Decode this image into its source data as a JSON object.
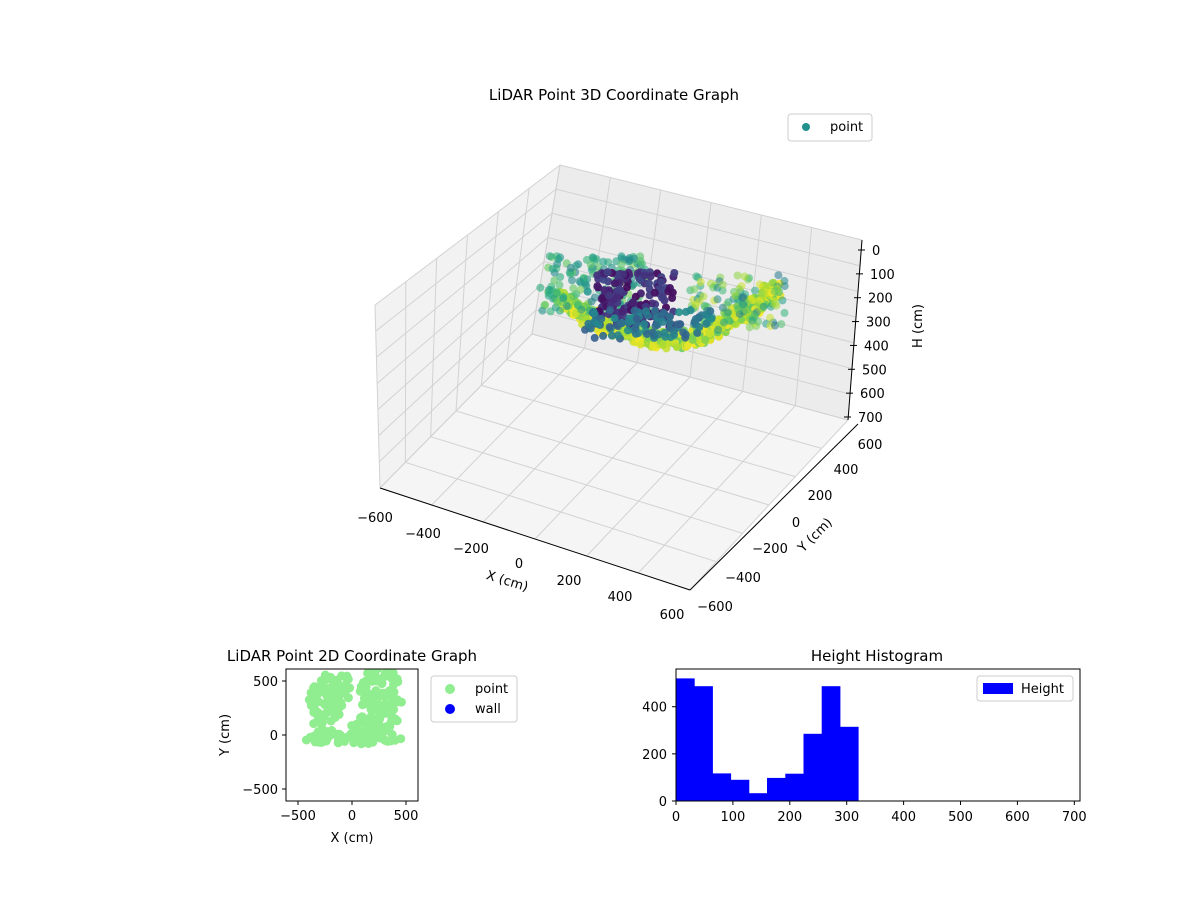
{
  "chart_data": [
    {
      "type": "scatter3d",
      "title": "LiDAR Point 3D Coordinate Graph",
      "xlabel": "X (cm)",
      "ylabel": "Y (cm)",
      "zlabel": "H (cm)",
      "xlim": [
        -600,
        600
      ],
      "ylim": [
        -600,
        600
      ],
      "zlim": [
        0,
        700
      ],
      "z_inverted": true,
      "xticks": [
        "−600",
        "−400",
        "−200",
        "0",
        "200",
        "400",
        "600"
      ],
      "yticks": [
        "−600",
        "−400",
        "−200",
        "0",
        "200",
        "400",
        "600"
      ],
      "zticks": [
        "0",
        "100",
        "200",
        "300",
        "400",
        "500",
        "600",
        "700"
      ],
      "colormap": "viridis",
      "legend": {
        "entries": [
          "point"
        ],
        "placement": "top-right",
        "color": "#21918c"
      },
      "grid": true
    },
    {
      "type": "scatter",
      "title": "LiDAR Point 2D Coordinate Graph",
      "xlabel": "X (cm)",
      "ylabel": "Y (cm)",
      "xlim": [
        -600,
        600
      ],
      "ylim": [
        -600,
        600
      ],
      "xticks": [
        "−500",
        "0",
        "500"
      ],
      "yticks": [
        "−500",
        "0",
        "500"
      ],
      "legend": {
        "entries": [
          {
            "label": "point",
            "color": "#90ee90"
          },
          {
            "label": "wall",
            "color": "#0000ff"
          }
        ],
        "placement": "outside-right"
      },
      "series": [
        {
          "name": "point",
          "color": "#90ee90"
        },
        {
          "name": "wall",
          "color": "#0000ff"
        }
      ]
    },
    {
      "type": "bar",
      "title": "Height Histogram",
      "xlim": [
        0,
        710
      ],
      "ylim": [
        0,
        560
      ],
      "xticks": [
        "0",
        "100",
        "200",
        "300",
        "400",
        "500",
        "600",
        "700"
      ],
      "yticks": [
        "0",
        "200",
        "400"
      ],
      "bin_width": 32,
      "bin_starts": [
        0,
        32,
        64,
        96,
        128,
        160,
        192,
        224,
        256,
        288
      ],
      "values": [
        520,
        487,
        117,
        90,
        33,
        98,
        116,
        285,
        487,
        315
      ],
      "legend": {
        "entries": [
          "Height"
        ],
        "placement": "top-right"
      },
      "series": [
        {
          "name": "Height",
          "color": "#0000ff"
        }
      ]
    }
  ]
}
